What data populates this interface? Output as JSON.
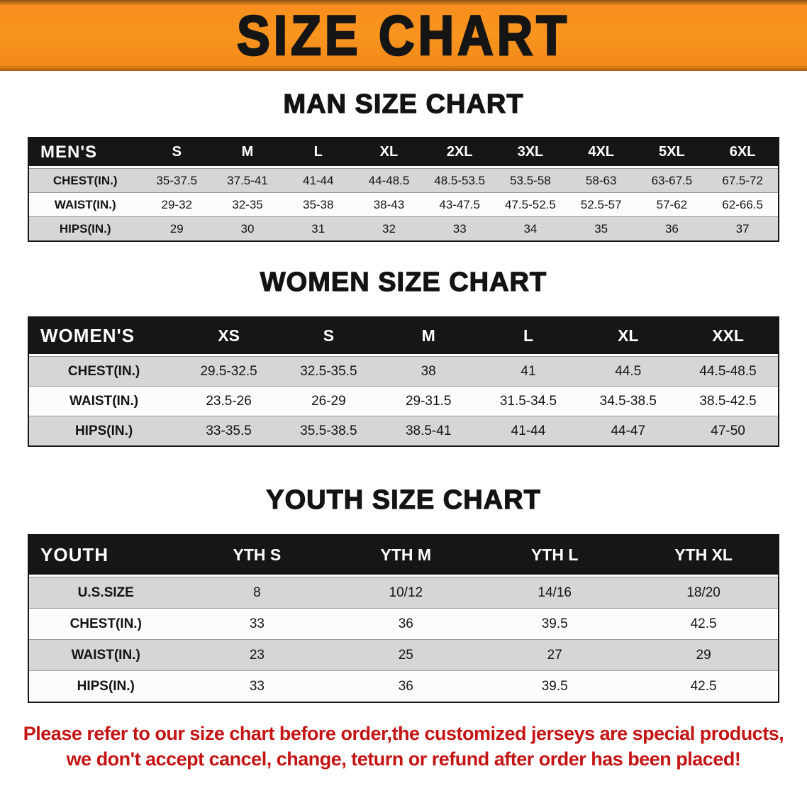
{
  "banner": {
    "title": "SIZE CHART"
  },
  "colors": {
    "banner_orange": "#f78e1e",
    "header_black": "#161616",
    "row_gray": "#d6d6d6",
    "footer_red": "#c41414"
  },
  "sections": [
    {
      "key": "mens",
      "heading": "MAN SIZE CHART",
      "table": {
        "header": [
          "MEN'S",
          "S",
          "M",
          "L",
          "XL",
          "2XL",
          "3XL",
          "4XL",
          "5XL",
          "6XL"
        ],
        "rows": [
          [
            "CHEST(IN.)",
            "35-37.5",
            "37.5-41",
            "41-44",
            "44-48.5",
            "48.5-53.5",
            "53.5-58",
            "58-63",
            "63-67.5",
            "67.5-72"
          ],
          [
            "WAIST(IN.)",
            "29-32",
            "32-35",
            "35-38",
            "38-43",
            "43-47.5",
            "47.5-52.5",
            "52.5-57",
            "57-62",
            "62-66.5"
          ],
          [
            "HIPS(IN.)",
            "29",
            "30",
            "31",
            "32",
            "33",
            "34",
            "35",
            "36",
            "37"
          ]
        ]
      }
    },
    {
      "key": "womens",
      "heading": "WOMEN SIZE CHART",
      "table": {
        "header": [
          "WOMEN'S",
          "XS",
          "S",
          "M",
          "L",
          "XL",
          "XXL"
        ],
        "rows": [
          [
            "CHEST(IN.)",
            "29.5-32.5",
            "32.5-35.5",
            "38",
            "41",
            "44.5",
            "44.5-48.5"
          ],
          [
            "WAIST(IN.)",
            "23.5-26",
            "26-29",
            "29-31.5",
            "31.5-34.5",
            "34.5-38.5",
            "38.5-42.5"
          ],
          [
            "HIPS(IN.)",
            "33-35.5",
            "35.5-38.5",
            "38.5-41",
            "41-44",
            "44-47",
            "47-50"
          ]
        ]
      }
    },
    {
      "key": "youth",
      "heading": "YOUTH SIZE CHART",
      "table": {
        "header": [
          "YOUTH",
          "YTH S",
          "YTH M",
          "YTH L",
          "YTH XL"
        ],
        "rows": [
          [
            "U.S.SIZE",
            "8",
            "10/12",
            "14/16",
            "18/20"
          ],
          [
            "CHEST(IN.)",
            "33",
            "36",
            "39.5",
            "42.5"
          ],
          [
            "WAIST(IN.)",
            "23",
            "25",
            "27",
            "29"
          ],
          [
            "HIPS(IN.)",
            "33",
            "36",
            "39.5",
            "42.5"
          ]
        ]
      }
    }
  ],
  "footer": {
    "line1": "Please refer to our size chart before order,the customized jerseys are special products,",
    "line2": "we don't accept cancel, change, teturn or refund after order has been placed!"
  }
}
